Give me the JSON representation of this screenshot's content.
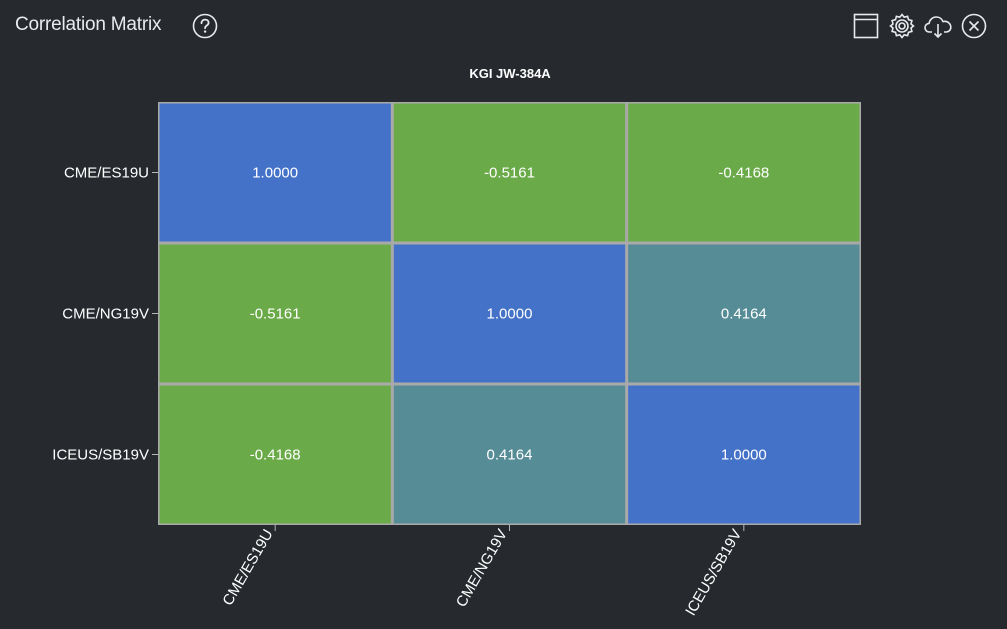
{
  "panel": {
    "title": "Correlation Matrix",
    "icons": {
      "help": "help-circle-icon",
      "window": "window-icon",
      "settings": "gear-icon",
      "download": "cloud-download-icon",
      "close": "close-circle-icon"
    }
  },
  "chart_data": {
    "type": "heatmap",
    "title": "KGI JW-384A",
    "rows": [
      "CME/ES19U",
      "CME/NG19V",
      "ICEUS/SB19V"
    ],
    "columns": [
      "CME/ES19U",
      "CME/NG19V",
      "ICEUS/SB19V"
    ],
    "values": [
      [
        1.0,
        -0.5161,
        -0.4168
      ],
      [
        -0.5161,
        1.0,
        0.4164
      ],
      [
        -0.4168,
        0.4164,
        1.0
      ]
    ],
    "value_labels": [
      [
        "1.0000",
        "-0.5161",
        "-0.4168"
      ],
      [
        "-0.5161",
        "1.0000",
        "0.4164"
      ],
      [
        "-0.4168",
        "0.4164",
        "1.0000"
      ]
    ],
    "colors": {
      "high": "#4472c8",
      "mid": "#568c96",
      "low": "#6aaa48",
      "grid": "#a9a9a9",
      "background": "#262a2f"
    }
  }
}
